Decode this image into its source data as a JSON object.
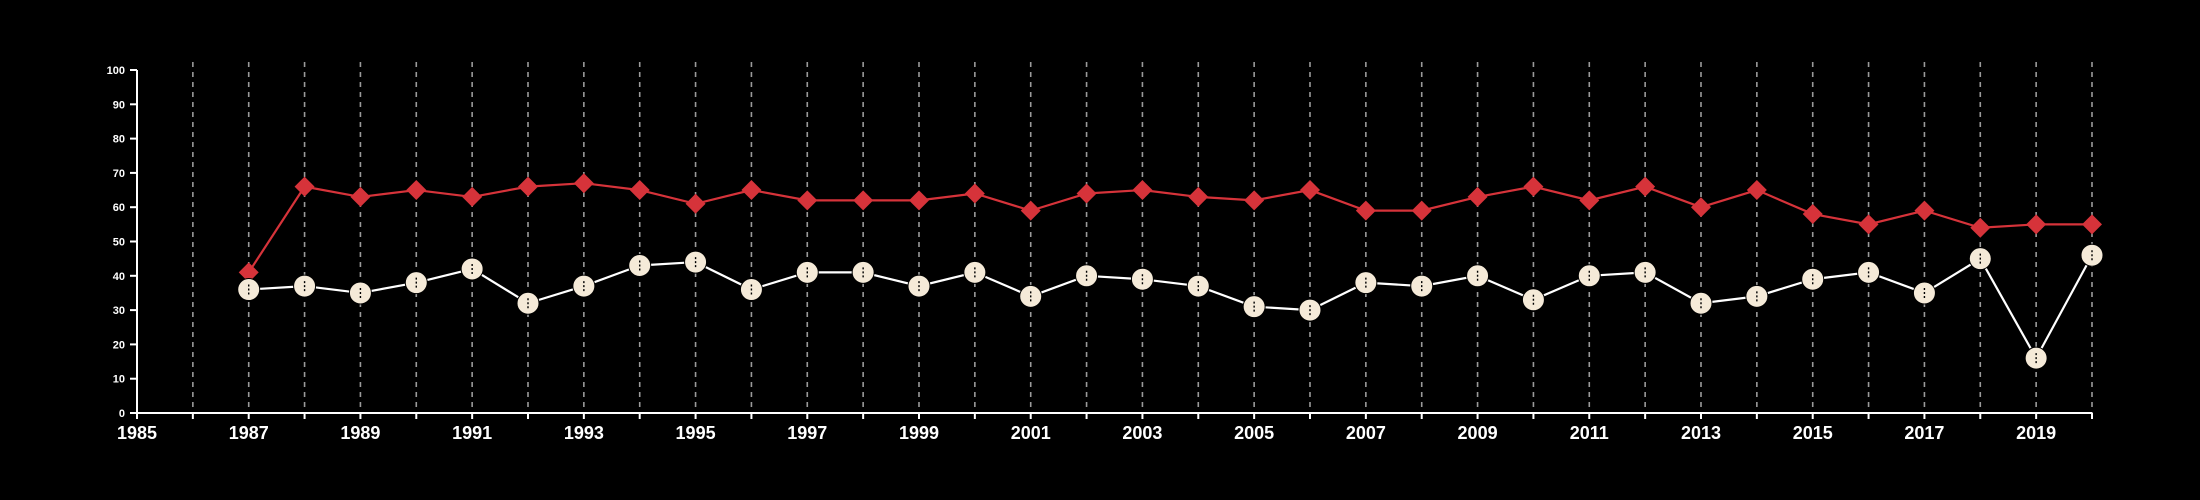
{
  "chart_data": {
    "type": "line",
    "title": "",
    "xlabel": "",
    "ylabel": "",
    "xlim": [
      1985,
      2020
    ],
    "ylim": [
      0,
      100
    ],
    "y_ticks": [
      0,
      10,
      20,
      30,
      40,
      50,
      60,
      70,
      80,
      90,
      100
    ],
    "x_tick_labels": [
      1985,
      1987,
      1989,
      1991,
      1993,
      1995,
      1997,
      1999,
      2001,
      2003,
      2005,
      2007,
      2009,
      2011,
      2013,
      2015,
      2017,
      2019
    ],
    "grid": "vertical dashed lines at every year",
    "background": "#000000",
    "x": [
      1987,
      1988,
      1989,
      1990,
      1991,
      1992,
      1993,
      1994,
      1995,
      1996,
      1997,
      1998,
      1999,
      2000,
      2001,
      2002,
      2003,
      2004,
      2005,
      2006,
      2007,
      2008,
      2009,
      2010,
      2011,
      2012,
      2013,
      2014,
      2015,
      2016,
      2017,
      2018,
      2019,
      2020
    ],
    "series": [
      {
        "marker": "diamond",
        "color": "#d6333a",
        "values": [
          41,
          66,
          63,
          65,
          63,
          66,
          67,
          65,
          61,
          65,
          62,
          62,
          62,
          64,
          59,
          64,
          65,
          63,
          62,
          65,
          59,
          59,
          63,
          66,
          62,
          66,
          60,
          65,
          58,
          55,
          59,
          54,
          55,
          55
        ]
      },
      {
        "marker": "circle",
        "color": "#f5ead8",
        "line_color": "#ffffff",
        "values": [
          36,
          37,
          35,
          38,
          42,
          32,
          37,
          43,
          44,
          36,
          41,
          41,
          37,
          41,
          34,
          40,
          39,
          37,
          31,
          30,
          38,
          37,
          40,
          33,
          40,
          41,
          32,
          34,
          39,
          41,
          35,
          45,
          16,
          46
        ]
      }
    ]
  }
}
